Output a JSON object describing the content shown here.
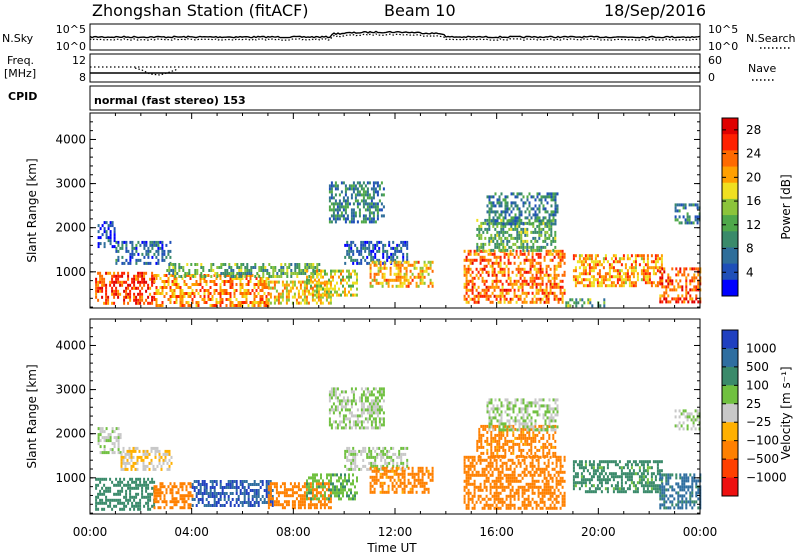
{
  "header": {
    "title": "Zhongshan Station (fitACF)",
    "beam": "Beam 10",
    "date": "18/Sep/2016"
  },
  "strips": {
    "nsky_label": "N.Sky",
    "nsky_ticks": [
      "10^5",
      "10^0"
    ],
    "nsearch_label": "N.Search",
    "nsearch_ticks": [
      "10^5",
      "10^0"
    ],
    "freq_label_1": "Freq.",
    "freq_label_2": "[MHz]",
    "freq_ticks": [
      "12",
      "8"
    ],
    "nave_label": "Nave",
    "nave_ticks": [
      "60",
      "0"
    ],
    "cpid_label": "CPID",
    "cpid_text": "normal (fast stereo) 153"
  },
  "chart_data": [
    {
      "type": "heatmap",
      "title": "",
      "xlabel": "Time UT",
      "ylabel": "Slant Range [km]",
      "xlim": [
        0,
        24
      ],
      "ylim": [
        180,
        4600
      ],
      "x_ticks": [
        "00:00",
        "04:00",
        "08:00",
        "12:00",
        "16:00",
        "20:00",
        "00:00"
      ],
      "y_ticks": [
        "1000",
        "2000",
        "3000",
        "4000"
      ],
      "colorbar": {
        "label": "Power [dB]",
        "ticks": [
          "4",
          "8",
          "12",
          "16",
          "20",
          "24",
          "28"
        ],
        "range": [
          0,
          30
        ],
        "colors": [
          "#0000ff",
          "#1f4fb8",
          "#2f6e9a",
          "#3a8a6a",
          "#4fa84a",
          "#8cc43a",
          "#f0e020",
          "#ffa000",
          "#ff6a00",
          "#ff2000",
          "#e00000"
        ]
      },
      "regions": [
        {
          "t0": 0.3,
          "t1": 1.0,
          "r0": 1600,
          "r1": 2150,
          "v": 4
        },
        {
          "t0": 1.0,
          "t1": 3.2,
          "r0": 1200,
          "r1": 1700,
          "v": 6
        },
        {
          "t0": 0.2,
          "t1": 2.5,
          "r0": 300,
          "r1": 1000,
          "v": 25
        },
        {
          "t0": 2.5,
          "t1": 7.0,
          "r0": 250,
          "r1": 950,
          "v": 22
        },
        {
          "t0": 3.0,
          "t1": 9.0,
          "r0": 900,
          "r1": 1200,
          "v": 12
        },
        {
          "t0": 7.0,
          "t1": 9.5,
          "r0": 300,
          "r1": 800,
          "v": 19
        },
        {
          "t0": 8.5,
          "t1": 10.5,
          "r0": 500,
          "r1": 1050,
          "v": 17
        },
        {
          "t0": 9.4,
          "t1": 11.6,
          "r0": 2100,
          "r1": 3050,
          "v": 8
        },
        {
          "t0": 10.0,
          "t1": 12.5,
          "r0": 1200,
          "r1": 1700,
          "v": 5
        },
        {
          "t0": 11.0,
          "t1": 13.5,
          "r0": 650,
          "r1": 1250,
          "v": 20
        },
        {
          "t0": 14.7,
          "t1": 18.7,
          "r0": 300,
          "r1": 1500,
          "v": 23
        },
        {
          "t0": 15.2,
          "t1": 18.3,
          "r0": 1500,
          "r1": 2200,
          "v": 12
        },
        {
          "t0": 15.6,
          "t1": 18.4,
          "r0": 2100,
          "r1": 2800,
          "v": 8
        },
        {
          "t0": 18.7,
          "t1": 20.2,
          "r0": 200,
          "r1": 400,
          "v": 12
        },
        {
          "t0": 19.0,
          "t1": 22.5,
          "r0": 700,
          "r1": 1400,
          "v": 21
        },
        {
          "t0": 22.4,
          "t1": 24.0,
          "r0": 300,
          "r1": 1100,
          "v": 24
        },
        {
          "t0": 23.0,
          "t1": 24.0,
          "r0": 2100,
          "r1": 2550,
          "v": 8
        }
      ]
    },
    {
      "type": "heatmap",
      "title": "",
      "xlabel": "Time UT",
      "ylabel": "Slant Range [km]",
      "xlim": [
        0,
        24
      ],
      "ylim": [
        180,
        4600
      ],
      "x_ticks": [
        "00:00",
        "04:00",
        "08:00",
        "12:00",
        "16:00",
        "20:00",
        "00:00"
      ],
      "y_ticks": [
        "1000",
        "2000",
        "3000",
        "4000"
      ],
      "colorbar": {
        "label": "Velocity [m s⁻¹]",
        "ticks": [
          "1000",
          "500",
          "100",
          "25",
          "−25",
          "−100",
          "−500",
          "−1000"
        ],
        "colors": [
          "#2040c0",
          "#2f6ea0",
          "#3a8a6a",
          "#70c040",
          "#c8c8c8",
          "#ffb000",
          "#ff8000",
          "#ff4000",
          "#ee1010"
        ]
      },
      "regions": [
        {
          "t0": 0.3,
          "t1": 1.2,
          "r0": 1600,
          "r1": 2150,
          "v": 25
        },
        {
          "t0": 1.2,
          "t1": 3.2,
          "r0": 1200,
          "r1": 1700,
          "v": -25
        },
        {
          "t0": 0.2,
          "t1": 2.5,
          "r0": 300,
          "r1": 1000,
          "v": 300
        },
        {
          "t0": 2.5,
          "t1": 4.0,
          "r0": 300,
          "r1": 900,
          "v": -300
        },
        {
          "t0": 4.0,
          "t1": 7.2,
          "r0": 350,
          "r1": 950,
          "v": 1000
        },
        {
          "t0": 7.0,
          "t1": 9.5,
          "r0": 300,
          "r1": 900,
          "v": -300
        },
        {
          "t0": 8.5,
          "t1": 10.5,
          "r0": 500,
          "r1": 1100,
          "v": 80
        },
        {
          "t0": 9.4,
          "t1": 11.6,
          "r0": 2100,
          "r1": 3050,
          "v": 25
        },
        {
          "t0": 10.0,
          "t1": 12.5,
          "r0": 1200,
          "r1": 1700,
          "v": 25
        },
        {
          "t0": 11.0,
          "t1": 13.5,
          "r0": 650,
          "r1": 1250,
          "v": -150
        },
        {
          "t0": 14.7,
          "t1": 18.7,
          "r0": 300,
          "r1": 1500,
          "v": -300
        },
        {
          "t0": 15.2,
          "t1": 18.3,
          "r0": 1500,
          "r1": 2200,
          "v": -150
        },
        {
          "t0": 15.6,
          "t1": 18.4,
          "r0": 2100,
          "r1": 2800,
          "v": 25
        },
        {
          "t0": 19.0,
          "t1": 22.5,
          "r0": 700,
          "r1": 1400,
          "v": 150
        },
        {
          "t0": 22.4,
          "t1": 24.0,
          "r0": 300,
          "r1": 1100,
          "v": 600
        },
        {
          "t0": 23.0,
          "t1": 24.0,
          "r0": 2100,
          "r1": 2550,
          "v": 25
        }
      ]
    }
  ]
}
